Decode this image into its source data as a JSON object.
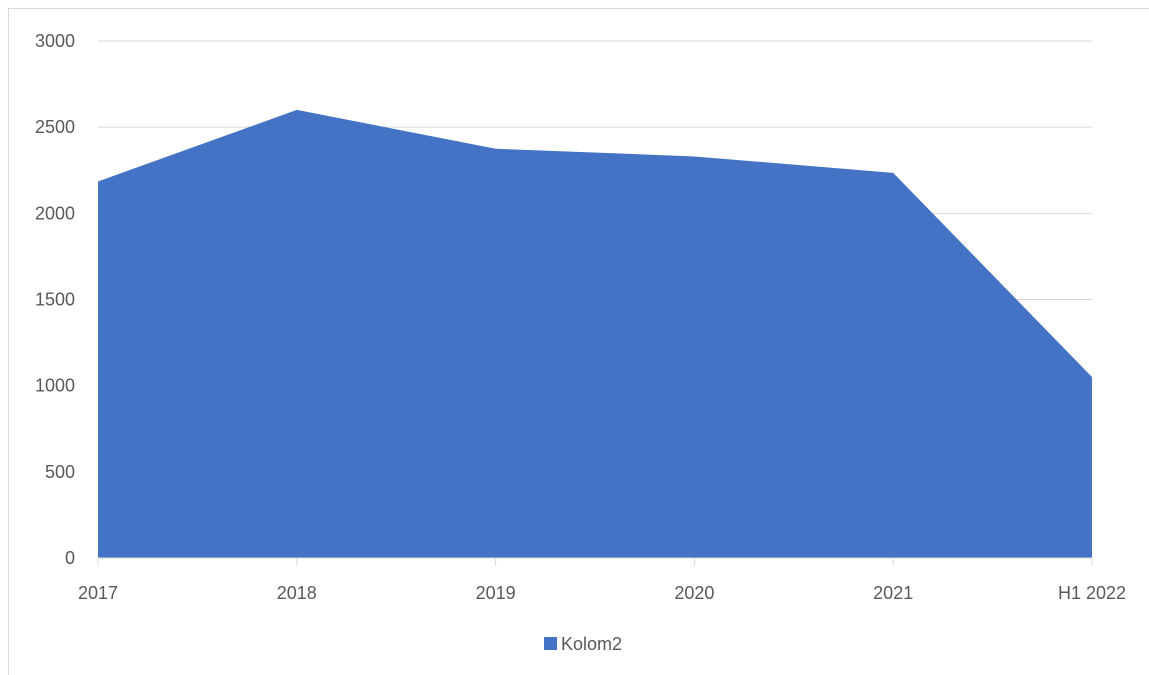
{
  "chart_data": {
    "type": "area",
    "title": "",
    "xlabel": "",
    "ylabel": "",
    "categories": [
      "2017",
      "2018",
      "2019",
      "2020",
      "2021",
      "H1 2022"
    ],
    "series": [
      {
        "name": "Kolom2",
        "color": "#4472c4",
        "values": [
          2185,
          2600,
          2375,
          2330,
          2235,
          1050
        ]
      }
    ],
    "ylim": [
      0,
      3000
    ],
    "yticks": [
      "0",
      "500",
      "1000",
      "1500",
      "2000",
      "2500",
      "3000"
    ],
    "grid": true,
    "legend_position": "bottom"
  }
}
